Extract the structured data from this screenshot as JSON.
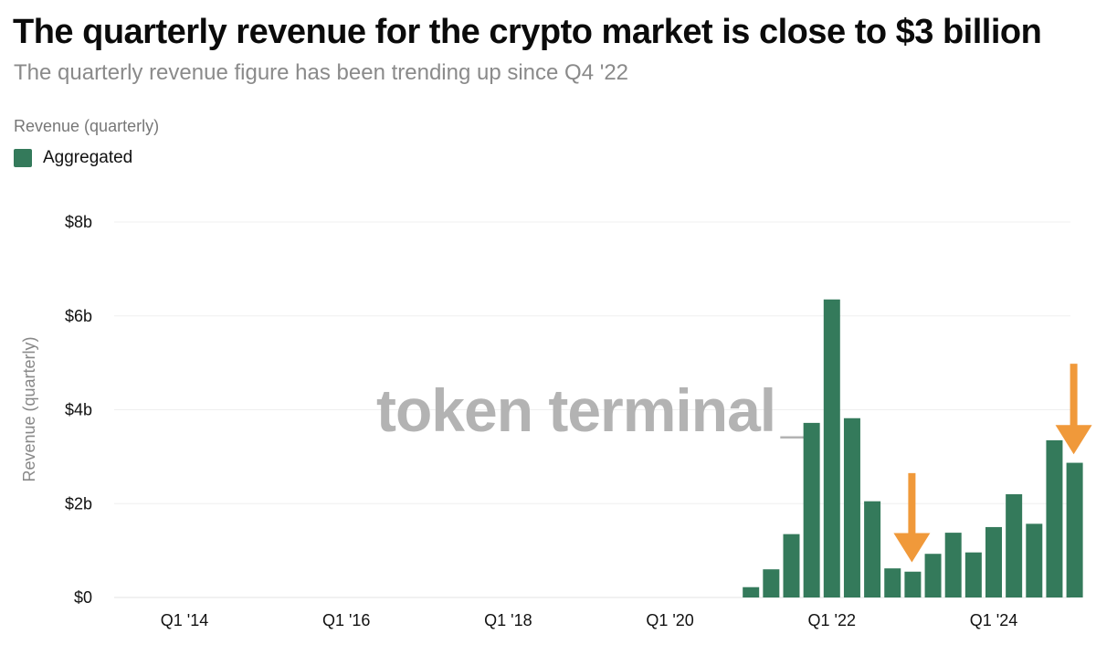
{
  "header": {
    "title": "The quarterly revenue for the crypto market is close to $3 billion",
    "subtitle": "The quarterly revenue figure has been trending up since Q4 '22",
    "series_label": "Revenue (quarterly)"
  },
  "legend": {
    "label": "Aggregated",
    "color": "#347a5b"
  },
  "watermark": {
    "text": "token terminal",
    "cursor": "_"
  },
  "colors": {
    "bar": "#347a5b",
    "arrow": "#f0993a",
    "grid": "#efefef"
  },
  "chart_data": {
    "type": "bar",
    "title": "The quarterly revenue for the crypto market is close to $3 billion",
    "ylabel": "Revenue (quarterly)",
    "xlabel": "",
    "ylim": [
      0,
      8
    ],
    "unit": "billion USD",
    "y_ticks": [
      {
        "value": 0,
        "label": "$0"
      },
      {
        "value": 2,
        "label": "$2b"
      },
      {
        "value": 4,
        "label": "$4b"
      },
      {
        "value": 6,
        "label": "$6b"
      },
      {
        "value": 8,
        "label": "$8b"
      }
    ],
    "x_start": "Q1 '14",
    "x_ticks": [
      {
        "index": 0,
        "label": "Q1 '14"
      },
      {
        "index": 8,
        "label": "Q1 '16"
      },
      {
        "index": 16,
        "label": "Q1 '18"
      },
      {
        "index": 24,
        "label": "Q1 '20"
      },
      {
        "index": 32,
        "label": "Q1 '22"
      },
      {
        "index": 40,
        "label": "Q1 '24"
      }
    ],
    "series": [
      {
        "name": "Aggregated",
        "values": [
          0,
          0,
          0,
          0,
          0,
          0,
          0,
          0,
          0,
          0,
          0,
          0,
          0,
          0,
          0,
          0,
          0,
          0,
          0,
          0,
          0,
          0,
          0,
          0,
          0,
          0,
          0,
          0,
          0.22,
          0.6,
          1.35,
          3.72,
          6.35,
          3.82,
          2.05,
          0.62,
          0.55,
          0.93,
          1.38,
          0.96,
          1.5,
          2.2,
          1.57,
          3.35,
          2.87
        ]
      }
    ],
    "annotations": [
      {
        "type": "arrow",
        "at_index": 36,
        "from_value": 2.65,
        "to_value": 0.75
      },
      {
        "type": "arrow",
        "at_index": 44,
        "from_value": 4.98,
        "to_value": 3.05
      }
    ]
  }
}
